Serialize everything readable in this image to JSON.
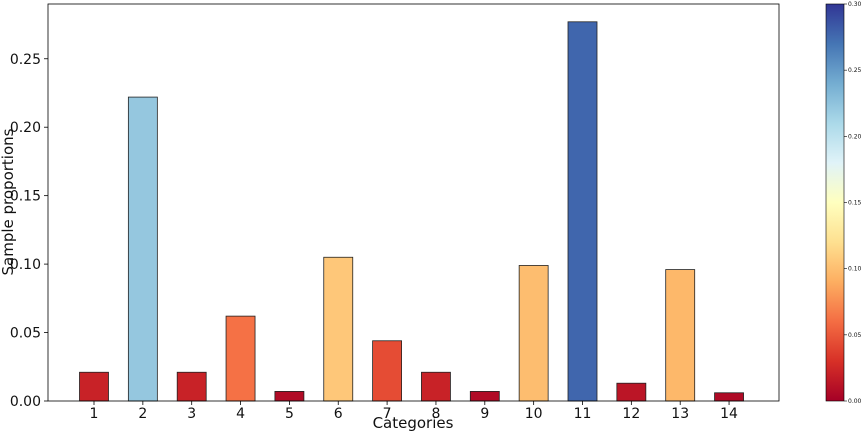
{
  "chart_data": {
    "type": "bar",
    "title": "",
    "xlabel": "Categories",
    "ylabel": "Sample proportions",
    "categories": [
      "1",
      "2",
      "3",
      "4",
      "5",
      "6",
      "7",
      "8",
      "9",
      "10",
      "11",
      "12",
      "13",
      "14"
    ],
    "values": [
      0.021,
      0.222,
      0.021,
      0.062,
      0.007,
      0.105,
      0.044,
      0.021,
      0.007,
      0.099,
      0.277,
      0.013,
      0.096,
      0.006
    ],
    "ylim": [
      0,
      0.29
    ],
    "yticks": [
      "0.00",
      "0.05",
      "0.10",
      "0.15",
      "0.20",
      "0.25"
    ],
    "grid": false,
    "legend": "none",
    "colormap": "RdYlBu",
    "colorbar": {
      "range": [
        0,
        0.3
      ],
      "ticks": [
        "0.00",
        "0.05",
        "0.10",
        "0.15",
        "0.20",
        "0.25",
        "0.30"
      ]
    },
    "colors": {
      "bar_edge": "#222222",
      "axis": "#000000"
    }
  }
}
